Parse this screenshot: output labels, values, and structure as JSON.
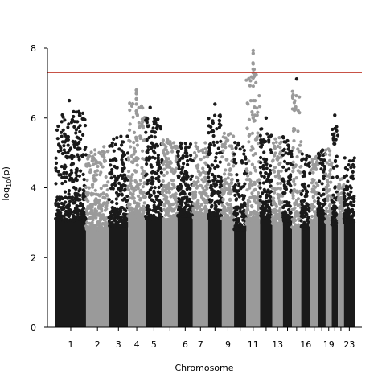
{
  "chart_data": {
    "type": "scatter",
    "subtype": "manhattan",
    "xlabel": "Chromosome",
    "ylabel": "−log₁₀(p)",
    "ylabel_main": "−log",
    "ylabel_sub": "10",
    "ylabel_tail": "(p)",
    "ylim": [
      0,
      8.5
    ],
    "yticks": [
      0,
      2,
      4,
      6,
      8
    ],
    "threshold": 7.3,
    "threshold_color": "#c0392b",
    "colors": {
      "odd": "#1a1a1a",
      "even": "#9a9a9a"
    },
    "grid": false,
    "chromosomes": [
      {
        "label": "1",
        "x_start": 0,
        "x_end": 40,
        "top": 6.5,
        "show_label": true
      },
      {
        "label": "2",
        "x_start": 40,
        "x_end": 70,
        "top": 5.5,
        "show_label": true
      },
      {
        "label": "3",
        "x_start": 70,
        "x_end": 95,
        "top": 5.8,
        "show_label": true
      },
      {
        "label": "4",
        "x_start": 95,
        "x_end": 118,
        "top": 6.8,
        "show_label": true
      },
      {
        "label": "5",
        "x_start": 118,
        "x_end": 140,
        "top": 6.3,
        "show_label": true
      },
      {
        "label": "",
        "x_start": 140,
        "x_end": 160,
        "top": 5.7,
        "show_label": false
      },
      {
        "label": "6",
        "x_start": 160,
        "x_end": 180,
        "top": 5.6,
        "show_label": true
      },
      {
        "label": "7",
        "x_start": 180,
        "x_end": 200,
        "top": 5.6,
        "show_label": true
      },
      {
        "label": "",
        "x_start": 200,
        "x_end": 218,
        "top": 6.4,
        "show_label": false
      },
      {
        "label": "9",
        "x_start": 218,
        "x_end": 234,
        "top": 5.9,
        "show_label": true
      },
      {
        "label": "",
        "x_start": 234,
        "x_end": 250,
        "top": 5.6,
        "show_label": false
      },
      {
        "label": "11",
        "x_start": 250,
        "x_end": 268,
        "top": 7.9,
        "show_label": true
      },
      {
        "label": "",
        "x_start": 268,
        "x_end": 284,
        "top": 6.0,
        "show_label": false
      },
      {
        "label": "13",
        "x_start": 284,
        "x_end": 298,
        "top": 5.8,
        "show_label": true
      },
      {
        "label": "",
        "x_start": 298,
        "x_end": 310,
        "top": 5.8,
        "show_label": false
      },
      {
        "label": "",
        "x_start": 310,
        "x_end": 322,
        "top": 7.1,
        "show_label": false
      },
      {
        "label": "16",
        "x_start": 322,
        "x_end": 334,
        "top": 5.3,
        "show_label": true
      },
      {
        "label": "",
        "x_start": 334,
        "x_end": 344,
        "top": 5.3,
        "show_label": false
      },
      {
        "label": "",
        "x_start": 344,
        "x_end": 354,
        "top": 5.5,
        "show_label": false
      },
      {
        "label": "19",
        "x_start": 354,
        "x_end": 362,
        "top": 5.7,
        "show_label": true
      },
      {
        "label": "",
        "x_start": 362,
        "x_end": 370,
        "top": 6.1,
        "show_label": false
      },
      {
        "label": "",
        "x_start": 370,
        "x_end": 378,
        "top": 4.6,
        "show_label": false
      },
      {
        "label": "23",
        "x_start": 378,
        "x_end": 392,
        "top": 5.2,
        "show_label": true
      }
    ],
    "outliers": [
      {
        "chrom": "1",
        "x": 18,
        "y": 6.5
      },
      {
        "chrom": "1",
        "x": 22,
        "y": 5.95
      },
      {
        "chrom": "4",
        "x": 106,
        "y": 6.8
      },
      {
        "chrom": "4",
        "x": 106,
        "y": 6.7
      },
      {
        "chrom": "4",
        "x": 106,
        "y": 6.55
      },
      {
        "chrom": "4",
        "x": 106,
        "y": 6.4
      },
      {
        "chrom": "4",
        "x": 106,
        "y": 6.2
      },
      {
        "chrom": "5",
        "x": 124,
        "y": 6.3
      },
      {
        "chrom": "8",
        "x": 209,
        "y": 6.4
      },
      {
        "chrom": "11",
        "x": 259,
        "y": 7.93
      },
      {
        "chrom": "11",
        "x": 259,
        "y": 7.85
      },
      {
        "chrom": "11",
        "x": 259,
        "y": 7.55
      },
      {
        "chrom": "11",
        "x": 259,
        "y": 7.4
      },
      {
        "chrom": "11",
        "x": 259,
        "y": 7.3
      },
      {
        "chrom": "11",
        "x": 259,
        "y": 7.15
      },
      {
        "chrom": "11",
        "x": 259,
        "y": 6.5
      },
      {
        "chrom": "11",
        "x": 259,
        "y": 6.0
      },
      {
        "chrom": "15",
        "x": 316,
        "y": 7.12
      },
      {
        "chrom": "21",
        "x": 366,
        "y": 6.08
      },
      {
        "chrom": "12",
        "x": 276,
        "y": 6.0
      }
    ]
  }
}
